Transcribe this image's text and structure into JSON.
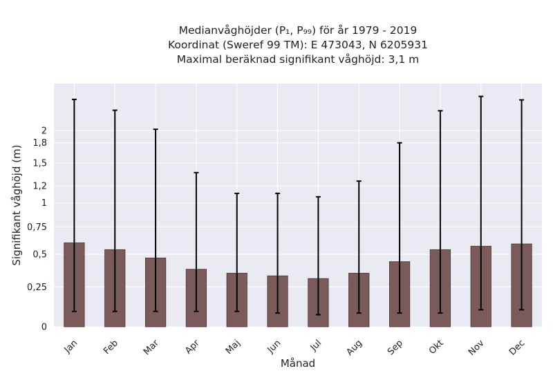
{
  "chart_data": {
    "type": "bar",
    "title_lines": [
      "Medianvåghöjder (P₁, P₉₉) för år 1979 - 2019",
      "Koordinat (Sweref 99 TM): E 473043, N 6205931",
      "Maximal beräknad signifikant våghöjd: 3,1 m"
    ],
    "xlabel": "Månad",
    "ylabel": "Signifikant våghöjd (m)",
    "categories": [
      "Jan",
      "Feb",
      "Mar",
      "Apr",
      "Maj",
      "Jun",
      "Jul",
      "Aug",
      "Sep",
      "Okt",
      "Nov",
      "Dec"
    ],
    "values": [
      0.6,
      0.54,
      0.47,
      0.38,
      0.35,
      0.33,
      0.31,
      0.35,
      0.44,
      0.54,
      0.57,
      0.59
    ],
    "p1": [
      0.09,
      0.09,
      0.09,
      0.09,
      0.09,
      0.08,
      0.07,
      0.08,
      0.08,
      0.08,
      0.1,
      0.1
    ],
    "p99": [
      2.57,
      2.36,
      2.02,
      1.37,
      1.11,
      1.11,
      1.07,
      1.26,
      1.8,
      2.35,
      2.63,
      2.56
    ],
    "yticks": [
      0,
      0.25,
      0.5,
      0.75,
      1,
      1.2,
      1.5,
      1.8,
      2
    ],
    "ytick_labels": [
      "0",
      "0,25",
      "0,5",
      "0,75",
      "1",
      "1,2",
      "1,5",
      "1,8",
      "2"
    ],
    "ylim": [
      0,
      2.9
    ],
    "y_scale": "log1p",
    "grid": true,
    "colors": {
      "bar": "#7b5a5a",
      "bar_edge": "#4a3535",
      "error_bar": "#000000",
      "plot_bg": "#eaeaf2",
      "grid": "#ffffff"
    }
  }
}
